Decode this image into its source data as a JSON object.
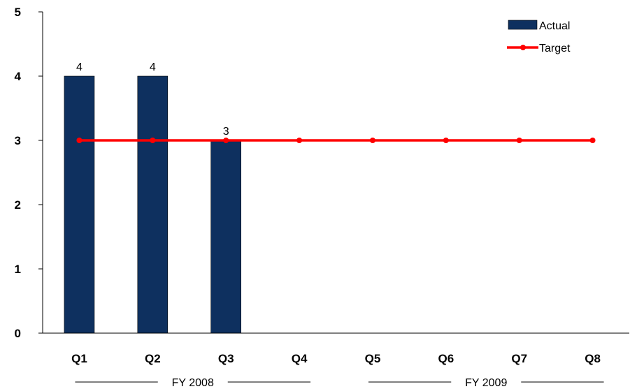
{
  "chart_data": {
    "type": "bar",
    "categories": [
      "Q1",
      "Q2",
      "Q3",
      "Q4",
      "Q5",
      "Q6",
      "Q7",
      "Q8"
    ],
    "series": [
      {
        "name": "Actual",
        "type": "bar",
        "color": "#0e305f",
        "values": [
          4,
          4,
          3,
          null,
          null,
          null,
          null,
          null
        ]
      },
      {
        "name": "Target",
        "type": "line",
        "color": "#ff0000",
        "values": [
          3,
          3,
          3,
          3,
          3,
          3,
          3,
          3
        ]
      }
    ],
    "data_labels": [
      "4",
      "4",
      "3"
    ],
    "y_ticks": [
      0,
      1,
      2,
      3,
      4,
      5
    ],
    "ylim": [
      0,
      5
    ],
    "x_groups": [
      {
        "label": "FY 2008",
        "categories": [
          "Q1",
          "Q2",
          "Q3",
          "Q4"
        ]
      },
      {
        "label": "FY 2009",
        "categories": [
          "Q5",
          "Q6",
          "Q7",
          "Q8"
        ]
      }
    ],
    "legend_position": "top-right",
    "grid": false
  }
}
